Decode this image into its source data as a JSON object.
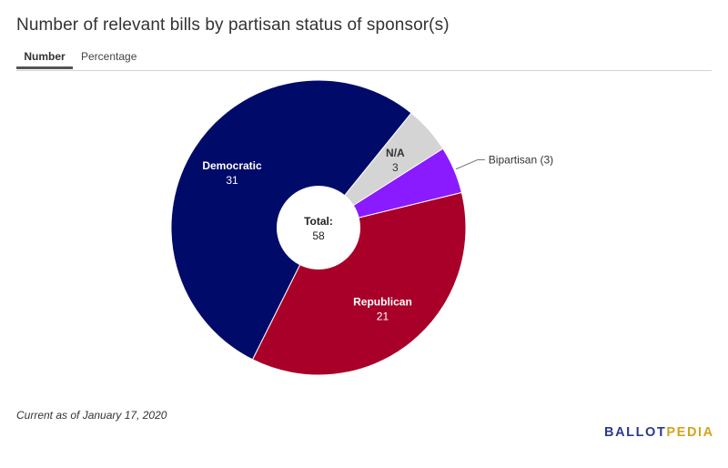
{
  "title": "Number of relevant bills by partisan status of sponsor(s)",
  "tabs": [
    {
      "label": "Number",
      "active": true
    },
    {
      "label": "Percentage",
      "active": false
    }
  ],
  "chart_data": {
    "type": "pie",
    "donut": true,
    "start_angle_deg": 39,
    "categories": [
      "N/A",
      "Bipartisan",
      "Republican",
      "Democratic"
    ],
    "values": [
      3,
      3,
      21,
      31
    ],
    "colors": [
      "#d4d4d4",
      "#8a1aff",
      "#a80028",
      "#000b69"
    ],
    "labels": [
      {
        "name": "N/A",
        "value": "3",
        "placement": "inside"
      },
      {
        "name": "Bipartisan (3)",
        "value": "",
        "placement": "outside"
      },
      {
        "name": "Republican",
        "value": "21",
        "placement": "inside"
      },
      {
        "name": "Democratic",
        "value": "31",
        "placement": "inside"
      }
    ],
    "center": {
      "label": "Total:",
      "value": "58"
    }
  },
  "footnote": "Current as of January 17, 2020",
  "brand": {
    "part1": "BALLOT",
    "part2": "PEDIA"
  }
}
